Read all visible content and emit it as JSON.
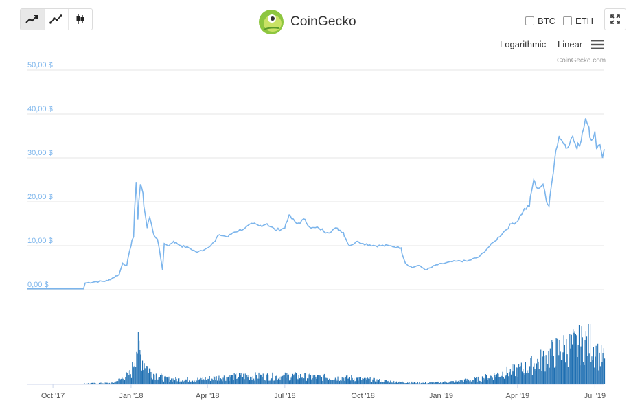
{
  "toolbar": {
    "buttons": [
      {
        "icon": "area-chart-icon",
        "active": true
      },
      {
        "icon": "line-chart-icon",
        "active": false
      },
      {
        "icon": "candlestick-icon",
        "active": false
      }
    ]
  },
  "brand": {
    "name": "CoinGecko",
    "logo_icon": "gecko-logo-icon"
  },
  "compare": [
    {
      "label": "BTC",
      "checked": false
    },
    {
      "label": "ETH",
      "checked": false
    }
  ],
  "scale_options": {
    "logarithmic": "Logarithmic",
    "linear": "Linear"
  },
  "credits": "CoinGecko.com",
  "colors": {
    "price_line": "#7cb5ec",
    "volume_bar": "#1f6fb2",
    "grid": "#e6e6e6"
  },
  "chart_data": {
    "type": "line",
    "title": "",
    "ylabel": "",
    "ylim": [
      0,
      50
    ],
    "y_ticks": [
      "0,00 $",
      "10,00 $",
      "20,00 $",
      "30,00 $",
      "40,00 $",
      "50,00 $"
    ],
    "y_tick_values": [
      0,
      10,
      20,
      30,
      40,
      50
    ],
    "x_ticks": [
      "Oct '17",
      "Jan '18",
      "Apr '18",
      "Jul '18",
      "Oct '18",
      "Jan '19",
      "Apr '19",
      "Jul '19"
    ],
    "x_tick_dates": [
      "2017-10-01",
      "2018-01-01",
      "2018-04-01",
      "2018-07-01",
      "2018-10-01",
      "2019-01-01",
      "2019-04-01",
      "2019-07-01"
    ],
    "x_range": [
      "2017-09-01",
      "2019-07-12"
    ],
    "grid": true,
    "legend": "none",
    "series": [
      {
        "values": [
          [
            "2017-09-01",
            0.2
          ],
          [
            "2017-10-01",
            0.2
          ],
          [
            "2017-11-06",
            0.2
          ],
          [
            "2017-11-08",
            1.5
          ],
          [
            "2017-11-20",
            1.8
          ],
          [
            "2017-12-05",
            2.0
          ],
          [
            "2017-12-18",
            3.5
          ],
          [
            "2017-12-22",
            6.0
          ],
          [
            "2017-12-27",
            5.5
          ],
          [
            "2018-01-01",
            10.0
          ],
          [
            "2018-01-04",
            12.0
          ],
          [
            "2018-01-07",
            24.5
          ],
          [
            "2018-01-09",
            16.0
          ],
          [
            "2018-01-12",
            24.0
          ],
          [
            "2018-01-15",
            22.0
          ],
          [
            "2018-01-20",
            14.0
          ],
          [
            "2018-01-23",
            16.5
          ],
          [
            "2018-01-27",
            13.0
          ],
          [
            "2018-02-01",
            11.5
          ],
          [
            "2018-02-05",
            7.0
          ],
          [
            "2018-02-07",
            4.5
          ],
          [
            "2018-02-09",
            10.5
          ],
          [
            "2018-02-15",
            10.0
          ],
          [
            "2018-02-20",
            11.0
          ],
          [
            "2018-03-01",
            10.0
          ],
          [
            "2018-03-10",
            9.5
          ],
          [
            "2018-03-20",
            8.5
          ],
          [
            "2018-04-01",
            9.5
          ],
          [
            "2018-04-10",
            11.0
          ],
          [
            "2018-04-15",
            12.5
          ],
          [
            "2018-04-25",
            12.0
          ],
          [
            "2018-05-01",
            13.0
          ],
          [
            "2018-05-15",
            14.0
          ],
          [
            "2018-05-25",
            15.0
          ],
          [
            "2018-06-01",
            14.5
          ],
          [
            "2018-06-10",
            15.0
          ],
          [
            "2018-06-20",
            13.5
          ],
          [
            "2018-07-01",
            14.0
          ],
          [
            "2018-07-06",
            17.0
          ],
          [
            "2018-07-15",
            15.0
          ],
          [
            "2018-07-25",
            16.0
          ],
          [
            "2018-08-01",
            14.0
          ],
          [
            "2018-08-10",
            14.0
          ],
          [
            "2018-08-20",
            13.0
          ],
          [
            "2018-09-01",
            14.0
          ],
          [
            "2018-09-08",
            13.0
          ],
          [
            "2018-09-15",
            10.0
          ],
          [
            "2018-09-25",
            11.0
          ],
          [
            "2018-10-01",
            10.5
          ],
          [
            "2018-10-15",
            10.0
          ],
          [
            "2018-11-01",
            10.0
          ],
          [
            "2018-11-15",
            9.5
          ],
          [
            "2018-11-20",
            6.0
          ],
          [
            "2018-11-28",
            5.0
          ],
          [
            "2018-12-05",
            5.5
          ],
          [
            "2018-12-15",
            4.5
          ],
          [
            "2018-12-25",
            5.5
          ],
          [
            "2019-01-05",
            6.0
          ],
          [
            "2019-01-20",
            6.5
          ],
          [
            "2019-02-01",
            6.5
          ],
          [
            "2019-02-15",
            7.5
          ],
          [
            "2019-02-25",
            9.5
          ],
          [
            "2019-03-05",
            11.0
          ],
          [
            "2019-03-15",
            13.0
          ],
          [
            "2019-03-25",
            15.0
          ],
          [
            "2019-04-01",
            15.5
          ],
          [
            "2019-04-08",
            18.0
          ],
          [
            "2019-04-15",
            19.0
          ],
          [
            "2019-04-20",
            25.0
          ],
          [
            "2019-04-25",
            23.0
          ],
          [
            "2019-05-01",
            24.0
          ],
          [
            "2019-05-05",
            20.0
          ],
          [
            "2019-05-08",
            19.0
          ],
          [
            "2019-05-11",
            24.0
          ],
          [
            "2019-05-15",
            30.0
          ],
          [
            "2019-05-20",
            35.0
          ],
          [
            "2019-05-27",
            33.0
          ],
          [
            "2019-06-01",
            33.0
          ],
          [
            "2019-06-05",
            35.0
          ],
          [
            "2019-06-10",
            32.0
          ],
          [
            "2019-06-15",
            34.0
          ],
          [
            "2019-06-20",
            39.0
          ],
          [
            "2019-06-24",
            37.0
          ],
          [
            "2019-06-27",
            34.0
          ],
          [
            "2019-07-01",
            36.0
          ],
          [
            "2019-07-03",
            32.0
          ],
          [
            "2019-07-07",
            33.0
          ],
          [
            "2019-07-10",
            30.0
          ],
          [
            "2019-07-12",
            32.0
          ]
        ]
      }
    ],
    "volume_profile": [
      [
        "2017-09-01",
        0
      ],
      [
        "2017-11-05",
        0
      ],
      [
        "2017-11-06",
        0.02
      ],
      [
        "2017-12-10",
        0.03
      ],
      [
        "2017-12-20",
        0.12
      ],
      [
        "2018-01-01",
        0.25
      ],
      [
        "2018-01-07",
        0.85
      ],
      [
        "2018-01-15",
        0.5
      ],
      [
        "2018-01-25",
        0.25
      ],
      [
        "2018-02-10",
        0.12
      ],
      [
        "2018-03-15",
        0.1
      ],
      [
        "2018-04-15",
        0.15
      ],
      [
        "2018-05-15",
        0.18
      ],
      [
        "2018-06-15",
        0.17
      ],
      [
        "2018-07-10",
        0.18
      ],
      [
        "2018-08-15",
        0.15
      ],
      [
        "2018-09-15",
        0.14
      ],
      [
        "2018-10-15",
        0.09
      ],
      [
        "2018-11-15",
        0.05
      ],
      [
        "2018-12-15",
        0.03
      ],
      [
        "2019-01-15",
        0.06
      ],
      [
        "2019-02-15",
        0.12
      ],
      [
        "2019-03-15",
        0.25
      ],
      [
        "2019-04-10",
        0.35
      ],
      [
        "2019-05-01",
        0.55
      ],
      [
        "2019-05-20",
        0.75
      ],
      [
        "2019-06-10",
        0.85
      ],
      [
        "2019-06-25",
        0.95
      ],
      [
        "2019-07-05",
        0.6
      ],
      [
        "2019-07-12",
        0.55
      ]
    ]
  }
}
